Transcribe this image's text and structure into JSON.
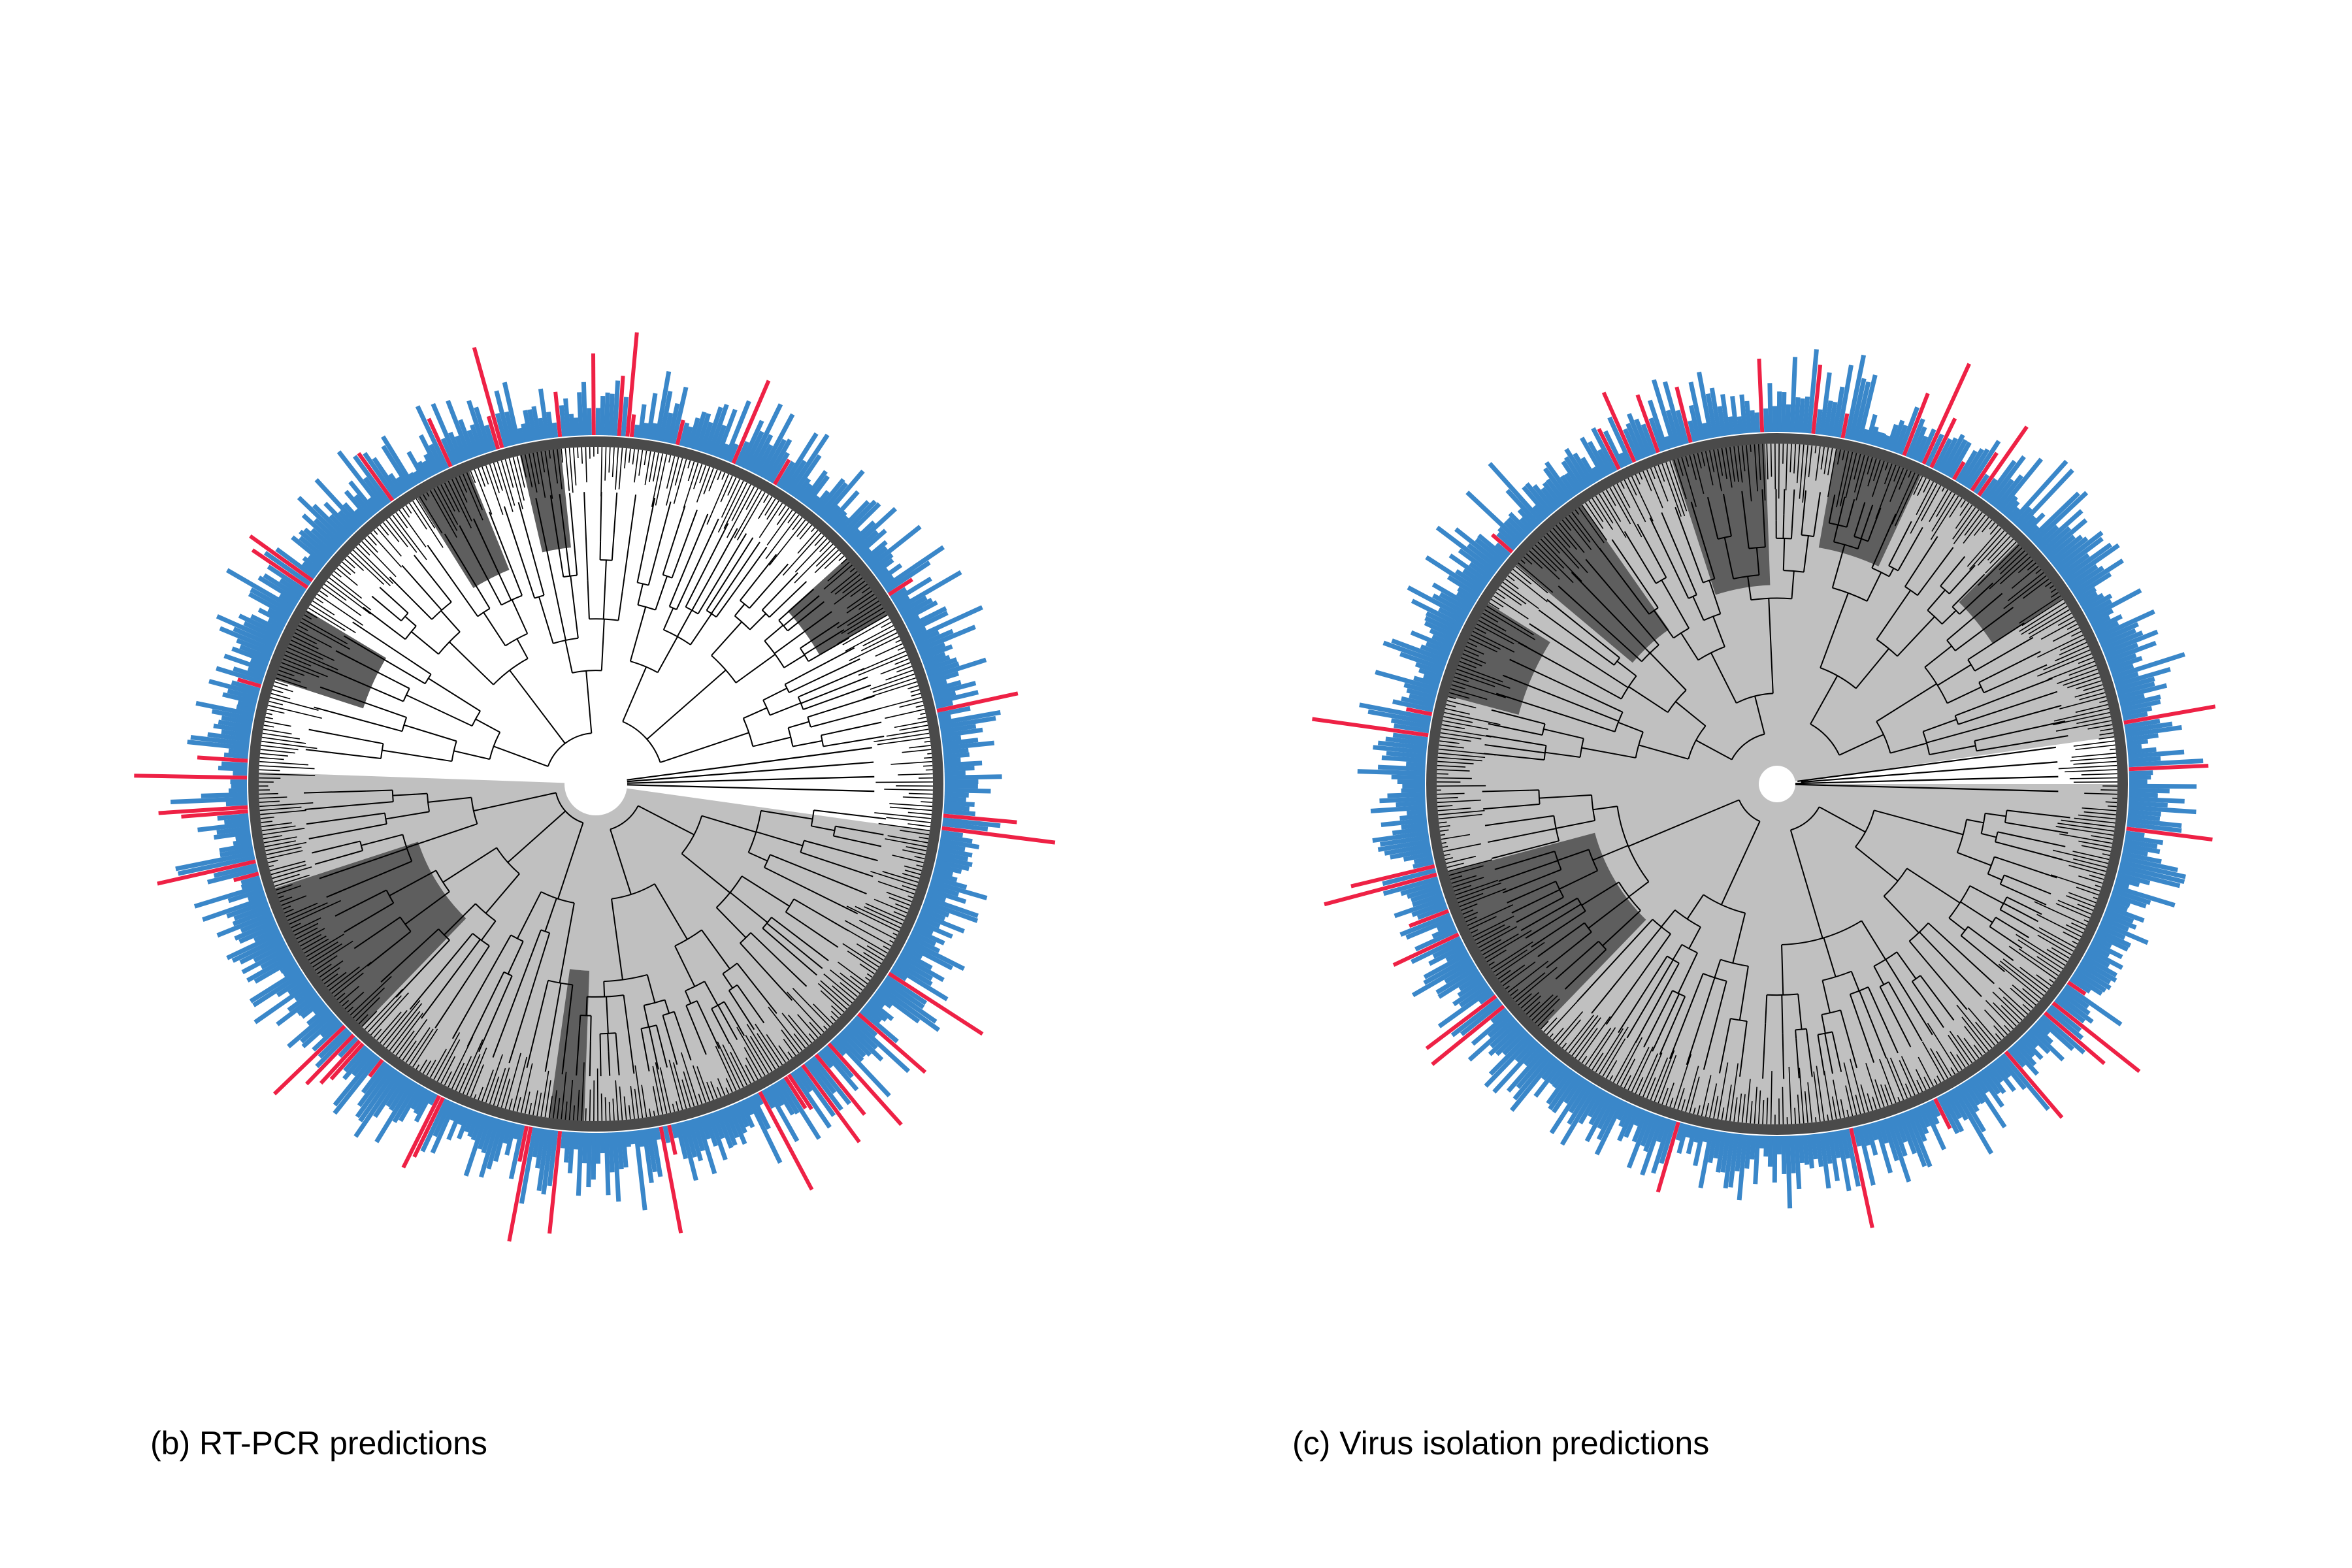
{
  "figure": {
    "panels": [
      {
        "id": "b",
        "caption": "(b) RT-PCR predictions"
      },
      {
        "id": "c",
        "caption": "(c) Virus isolation predictions"
      }
    ]
  },
  "colors": {
    "background": "#ffffff",
    "negative_bar": "#3a87c9",
    "positive_bar": "#ee2145",
    "ring": "#4a4a4a",
    "clade_light": "#c0c0c0",
    "clade_dark": "#5e5e5e",
    "branch": "#000000"
  }
}
